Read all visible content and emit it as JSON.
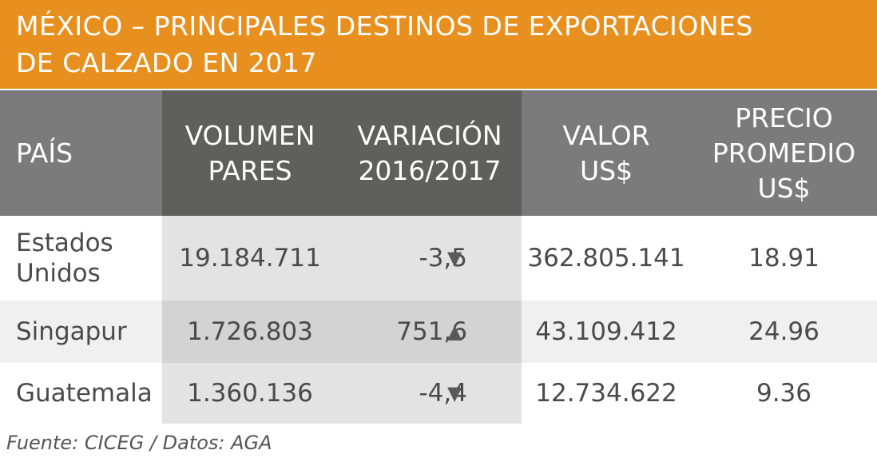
{
  "title_line1": "MÉXICO – PRINCIPALES DESTINOS DE EXPORTACIONES",
  "title_line2": "DE CALZADO EN 2017",
  "headers": {
    "pais": "PAÍS",
    "volumen_1": "VOLUMEN",
    "volumen_2": "PARES",
    "variacion_1": "VARIACIÓN",
    "variacion_2": "2016/2017",
    "valor_1": "VALOR",
    "valor_2": "US$",
    "precio_1": "PRECIO",
    "precio_2": "PROMEDIO",
    "precio_3": "US$"
  },
  "chart_data": {
    "type": "table",
    "columns": [
      "PAÍS",
      "VOLUMEN PARES",
      "VARIACIÓN 2016/2017",
      "VALOR US$",
      "PRECIO PROMEDIO US$"
    ],
    "rows": [
      {
        "pais_1": "Estados",
        "pais_2": "Unidos",
        "volumen": "19.184.711",
        "variacion": "-3,5",
        "direction": "down",
        "valor": "362.805.141",
        "precio": "18.91"
      },
      {
        "pais_1": "Singapur",
        "pais_2": "",
        "volumen": "1.726.803",
        "variacion": "751,6",
        "direction": "up",
        "valor": "43.109.412",
        "precio": "24.96"
      },
      {
        "pais_1": "Guatemala",
        "pais_2": "",
        "volumen": "1.360.136",
        "variacion": "-4,4",
        "direction": "down",
        "valor": "12.734.622",
        "precio": "9.36"
      }
    ]
  },
  "arrows": {
    "up": "▲",
    "down": "▼"
  },
  "source": "Fuente: CICEG / Datos: AGA",
  "colors": {
    "banner": "#e8901f",
    "header_light": "#7b7b7b",
    "header_dark": "#5f5f5d",
    "row_light": "#ffffff",
    "row_shaded": "#f0f0f0",
    "col_highlight": "#e3e3e3",
    "col_highlight_shaded": "#d3d3d3",
    "text": "#4a4a4a"
  }
}
